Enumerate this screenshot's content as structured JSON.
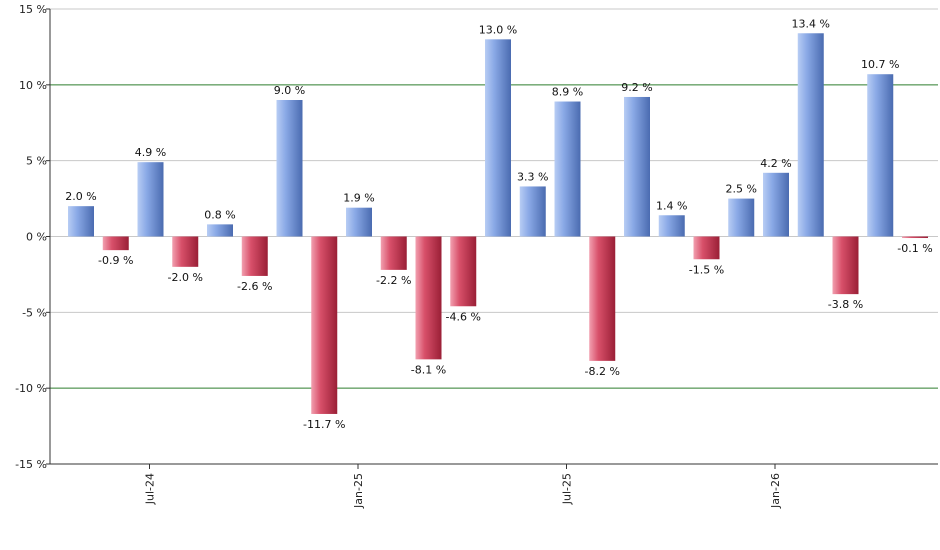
{
  "chart_data": {
    "type": "bar",
    "x_labels": [
      "Jul-24",
      "Jan-25",
      "Jul-25",
      "Jan-26"
    ],
    "label_suffix": " %",
    "values": [
      2.0,
      -0.9,
      4.9,
      -2.0,
      0.8,
      -2.6,
      9.0,
      -11.7,
      1.9,
      -2.2,
      -8.1,
      -4.6,
      13.0,
      3.3,
      8.9,
      -8.2,
      9.2,
      1.4,
      -1.5,
      2.5,
      4.2,
      13.4,
      -3.8,
      10.7,
      -0.1
    ],
    "value_labels": [
      "2.0 %",
      "-0.9 %",
      "4.9 %",
      "-2.0 %",
      "0.8 %",
      "-2.6 %",
      "9.0 %",
      "-11.7 %",
      "1.9 %",
      "-2.2 %",
      "-8.1 %",
      "-4.6 %",
      "13.0 %",
      "3.3 %",
      "8.9 %",
      "-8.2 %",
      "9.2 %",
      "1.4 %",
      "-1.5 %",
      "2.5 %",
      "4.2 %",
      "13.4 %",
      "-3.8 %",
      "10.7 %",
      "-0.1 %"
    ],
    "y_ticks": [
      15,
      10,
      5,
      0,
      -5,
      -10,
      -15
    ],
    "y_tick_labels": [
      "15 %",
      "10 %",
      "5 %",
      "0 %",
      "-5 %",
      "-10 %",
      "-15 %"
    ],
    "ylim": [
      -15,
      15
    ],
    "grid": true,
    "highlight_gridlines": [
      10,
      -10
    ],
    "colors": {
      "positive": "#6f93d8",
      "negative": "#c8364f",
      "grid": "#c8c8c8",
      "highlight_grid": "#2e7d2e",
      "axis": "#333333"
    }
  }
}
